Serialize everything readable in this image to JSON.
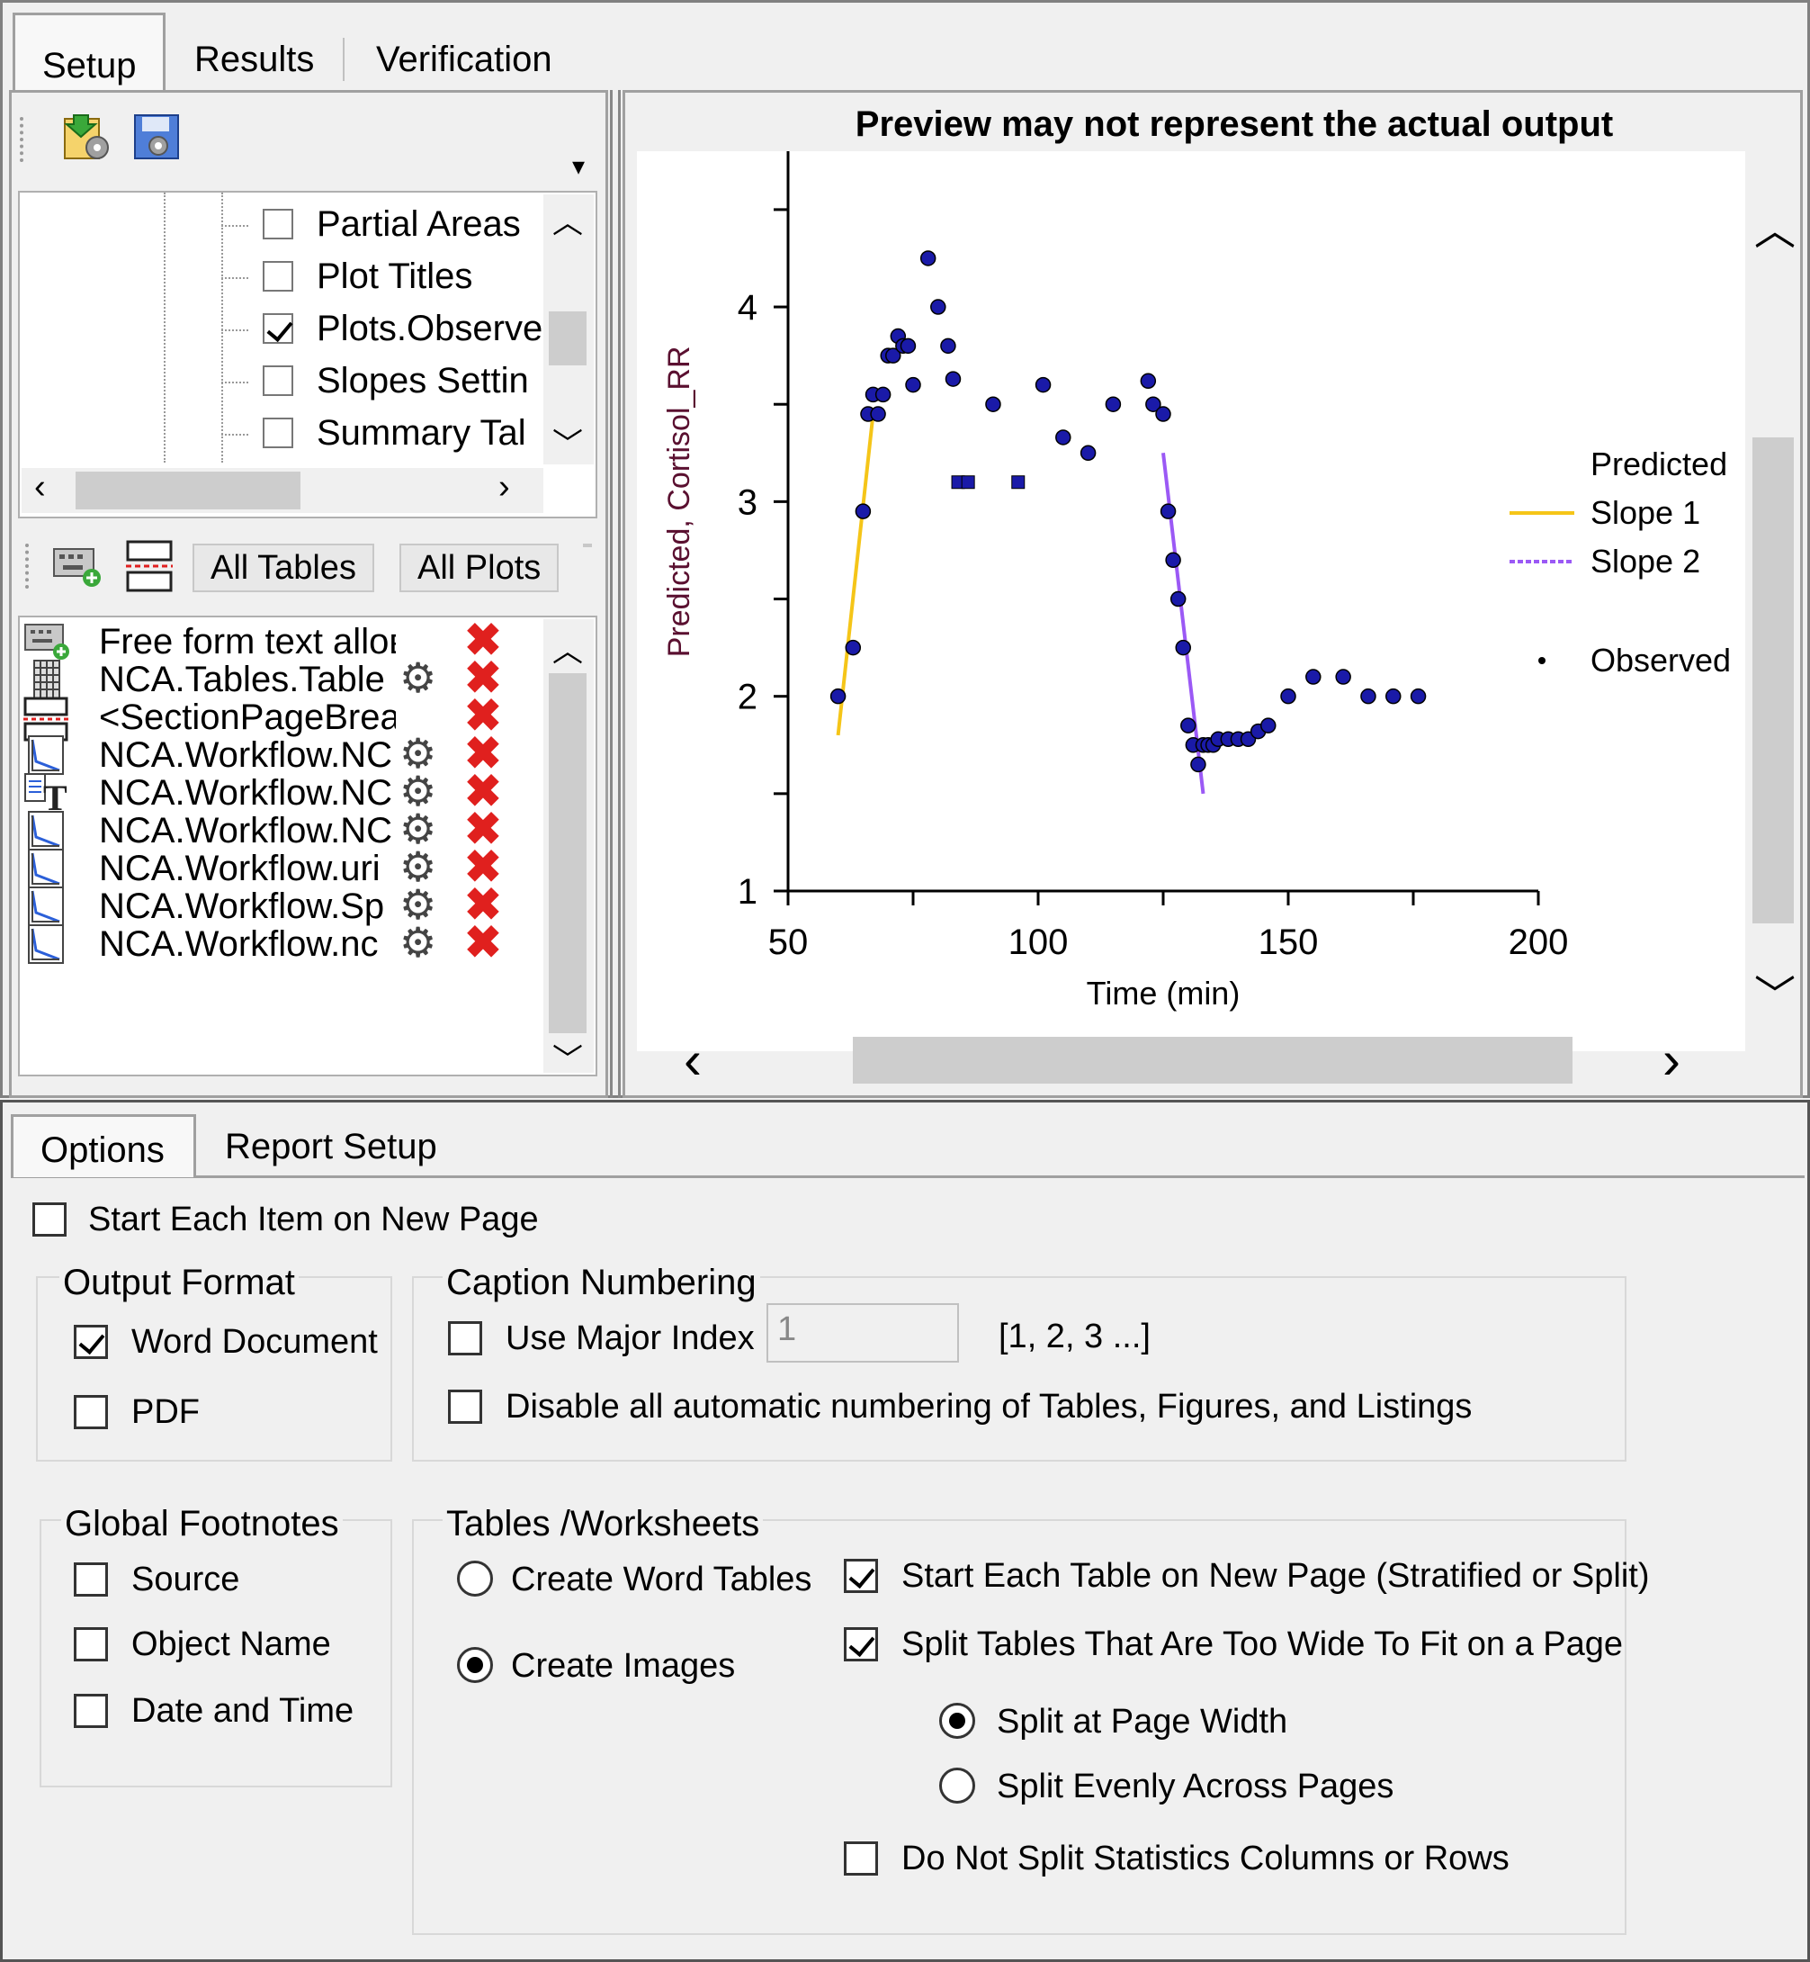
{
  "top_tabs": [
    "Setup",
    "Results",
    "Verification"
  ],
  "tree_items": [
    {
      "label": "Partial Areas",
      "checked": false
    },
    {
      "label": "Plot Titles",
      "checked": false
    },
    {
      "label": "Plots.Observe",
      "checked": true
    },
    {
      "label": "Slopes Settin",
      "checked": false
    },
    {
      "label": "Summary Tal",
      "checked": false
    }
  ],
  "report_toolbar": {
    "all_tables": "All Tables",
    "all_plots": "All Plots"
  },
  "report_items": [
    {
      "icon": "keyboard-add-icon",
      "label": "Free form text alloв",
      "gear": false
    },
    {
      "icon": "table-icon",
      "label": "NCA.Tables.Table",
      "gear": true
    },
    {
      "icon": "page-break-icon",
      "label": "<SectionPageBrea",
      "gear": false
    },
    {
      "icon": "plot-icon",
      "label": "NCA.Workflow.NC",
      "gear": true
    },
    {
      "icon": "text-icon",
      "label": "NCA.Workflow.NC",
      "gear": true
    },
    {
      "icon": "plot-icon",
      "label": "NCA.Workflow.NC",
      "gear": true
    },
    {
      "icon": "plot-icon",
      "label": "NCA.Workflow.uri",
      "gear": true
    },
    {
      "icon": "plot-icon",
      "label": "NCA.Workflow.Sp",
      "gear": true
    },
    {
      "icon": "plot-icon",
      "label": "NCA.Workflow.nc",
      "gear": true
    }
  ],
  "preview_title": "Preview may not represent the actual output",
  "chart_data": {
    "type": "scatter",
    "xlabel": "Time (min)",
    "ylabel": "Predicted, Cortisol_RR",
    "xlim": [
      50,
      200
    ],
    "ylim": [
      1,
      4.8
    ],
    "xticks": [
      50,
      100,
      150,
      200
    ],
    "yticks": [
      1,
      2,
      3,
      4
    ],
    "legend_title": "Predicted",
    "legend_position": "right",
    "series": [
      {
        "name": "Slope 1",
        "color": "#f5c518",
        "kind": "line",
        "x": [
          60,
          67
        ],
        "y": [
          1.8,
          3.45
        ]
      },
      {
        "name": "Slope 2",
        "color": "#9b59f5",
        "kind": "line",
        "x": [
          125,
          133
        ],
        "y": [
          3.25,
          1.5
        ]
      },
      {
        "name": "Observed",
        "color": "#1a1aa8",
        "kind": "points",
        "x": [
          60,
          63,
          65,
          66,
          67,
          68,
          69,
          70,
          71,
          72,
          73,
          74,
          75,
          78,
          80,
          82,
          83,
          84,
          86,
          91,
          96,
          101,
          105,
          110,
          115,
          122,
          123,
          125,
          126,
          127,
          128,
          129,
          130,
          131,
          132,
          133,
          134,
          135,
          136,
          138,
          140,
          142,
          144,
          146,
          150,
          155,
          161,
          166,
          171,
          176
        ],
        "y": [
          2.0,
          2.25,
          2.95,
          3.45,
          3.55,
          3.45,
          3.55,
          3.75,
          3.75,
          3.85,
          3.8,
          3.8,
          3.6,
          4.25,
          4.0,
          3.8,
          3.63,
          3.1,
          3.1,
          3.5,
          3.1,
          3.6,
          3.33,
          3.25,
          3.5,
          3.62,
          3.5,
          3.45,
          2.95,
          2.7,
          2.5,
          2.25,
          1.85,
          1.75,
          1.65,
          1.75,
          1.75,
          1.75,
          1.78,
          1.78,
          1.78,
          1.78,
          1.82,
          1.85,
          2.0,
          2.1,
          2.1,
          2.0,
          2.0,
          2.0
        ]
      }
    ],
    "observed_label": "Observed"
  },
  "bottom_tabs": [
    "Options",
    "Report Setup"
  ],
  "options": {
    "start_each_item": {
      "label": "Start Each Item on New Page",
      "checked": false
    },
    "output_format": {
      "title": "Output Format",
      "word": {
        "label": "Word Document",
        "checked": true
      },
      "pdf": {
        "label": "PDF",
        "checked": false
      }
    },
    "caption_numbering": {
      "title": "Caption Numbering",
      "use_major": {
        "label": "Use Major Index",
        "checked": false
      },
      "major_value": "1",
      "index_hint": "[1, 2, 3 ...]",
      "disable_auto": {
        "label": "Disable all automatic numbering of Tables, Figures, and Listings",
        "checked": false
      }
    },
    "global_footnotes": {
      "title": "Global Footnotes",
      "source": {
        "label": "Source",
        "checked": false
      },
      "object_name": {
        "label": "Object Name",
        "checked": false
      },
      "date_time": {
        "label": "Date and Time",
        "checked": false
      }
    },
    "tables_worksheets": {
      "title": "Tables /Worksheets",
      "create_word_tables": {
        "label": "Create Word Tables",
        "selected": false
      },
      "create_images": {
        "label": "Create Images",
        "selected": true
      },
      "start_each_table": {
        "label": "Start Each Table on New Page (Stratified or Split)",
        "checked": true
      },
      "split_tables": {
        "label": "Split Tables That Are Too Wide To Fit on a Page",
        "checked": true
      },
      "split_at_width": {
        "label": "Split at Page Width",
        "selected": true
      },
      "split_evenly": {
        "label": "Split Evenly Across Pages",
        "selected": false
      },
      "do_not_split": {
        "label": "Do Not Split Statistics Columns or Rows",
        "checked": false
      }
    }
  }
}
